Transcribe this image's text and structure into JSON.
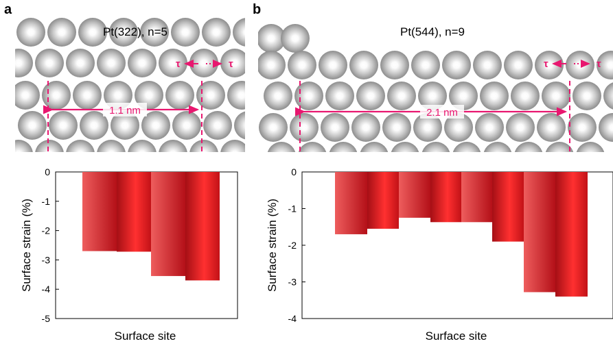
{
  "colors": {
    "accent_magenta": "#e8176f",
    "atom_base": "#9a9a9a",
    "bar_dark": "#b8121c",
    "bar_light": "#ee5a5a"
  },
  "panels": [
    {
      "letter": "a",
      "structure_title": "Pt(322), n=5",
      "tau_left": "τ",
      "tau_right": "τ",
      "span_label": "1.1 nm"
    },
    {
      "letter": "b",
      "structure_title": "Pt(544), n=9",
      "tau_left": "τ",
      "tau_right": "τ",
      "span_label": "2.1 nm"
    }
  ],
  "chart_data": [
    {
      "type": "bar",
      "xlabel": "Surface site",
      "ylabel": "Surface strain (%)",
      "ylim": [
        -5,
        0
      ],
      "yticks": [
        "0",
        "-1",
        "-2",
        "-3",
        "-4",
        "-5"
      ],
      "values": [
        -2.7,
        -2.72,
        -3.55,
        -3.7
      ]
    },
    {
      "type": "bar",
      "xlabel": "Surface site",
      "ylabel": "Surface strain (%)",
      "ylim": [
        -4,
        0
      ],
      "yticks": [
        "0",
        "-1",
        "-2",
        "-3",
        "-4"
      ],
      "values": [
        -1.7,
        -1.55,
        -1.25,
        -1.37,
        -1.37,
        -1.9,
        -3.28,
        -3.4
      ]
    }
  ]
}
